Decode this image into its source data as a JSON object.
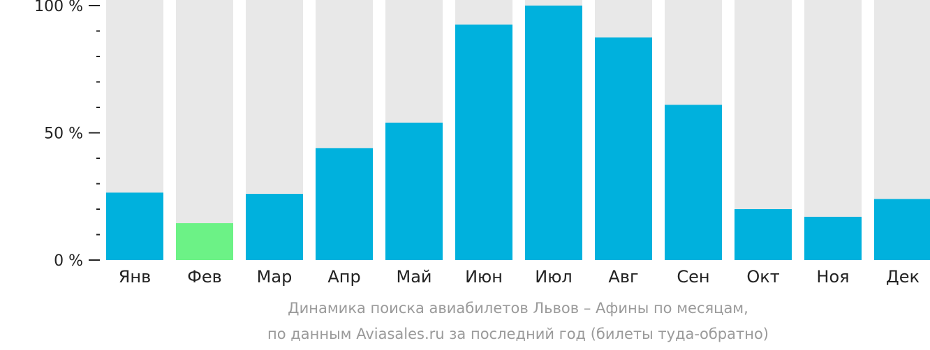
{
  "chart_data": {
    "type": "bar",
    "categories": [
      "Янв",
      "Фев",
      "Мар",
      "Апр",
      "Май",
      "Июн",
      "Июл",
      "Авг",
      "Сен",
      "Окт",
      "Ноя",
      "Дек"
    ],
    "values": [
      26.5,
      14.5,
      26,
      44,
      54,
      92.5,
      100,
      87.5,
      61,
      20,
      17,
      24
    ],
    "highlight_index": 1,
    "ylim": [
      0,
      100
    ],
    "yticks": [
      {
        "value": 100,
        "label": "100 %"
      },
      {
        "value": 50,
        "label": "50 %"
      },
      {
        "value": 0,
        "label": "0 %"
      }
    ],
    "minor_tick_step": 10,
    "colors": {
      "bar": "#00b1dd",
      "highlight": "#6cf286",
      "background_bar": "#e8e8e8",
      "axis": "#222222"
    }
  },
  "caption": {
    "line1": "Динамика поиска авиабилетов Львов – Афины по месяцам,",
    "line2": "по данным Aviasales.ru за последний год (билеты туда-обратно)"
  }
}
